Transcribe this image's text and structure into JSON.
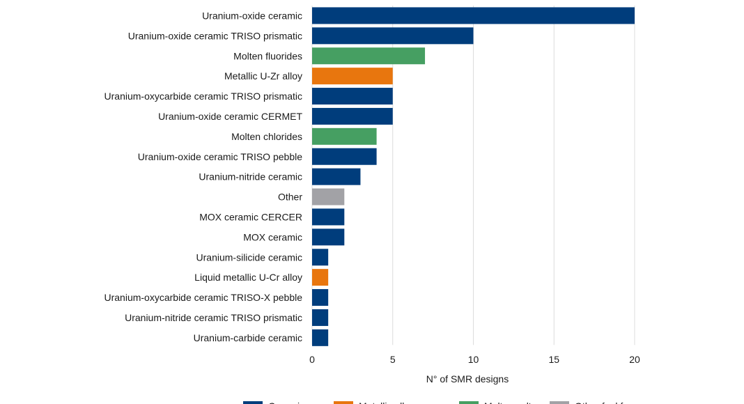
{
  "chart_data": {
    "type": "bar",
    "orientation": "horizontal",
    "title": "",
    "xlabel": "N° of SMR designs",
    "ylabel": "",
    "xlim": [
      0,
      20
    ],
    "xticks": [
      0,
      5,
      10,
      15,
      20
    ],
    "grid": true,
    "legend_position": "bottom",
    "colors": {
      "Ceramics": "#003d7c",
      "Metallic alloys": "#e8760e",
      "Molten salts": "#469f62",
      "Other fuel form": "#a2a2a6"
    },
    "legend": [
      "Ceramics",
      "Metallic alloys",
      "Molten salts",
      "Other fuel form"
    ],
    "categories": [
      "Uranium-oxide ceramic",
      "Uranium-oxide ceramic TRISO prismatic",
      "Molten fluorides",
      "Metallic U-Zr alloy",
      "Uranium-oxycarbide ceramic TRISO prismatic",
      "Uranium-oxide ceramic CERMET",
      "Molten chlorides",
      "Uranium-oxide ceramic TRISO pebble",
      "Uranium-nitride ceramic",
      "Other",
      "MOX ceramic CERCER",
      "MOX ceramic",
      "Uranium-silicide ceramic",
      "Liquid metallic U-Cr alloy",
      "Uranium-oxycarbide ceramic TRISO-X pebble",
      "Uranium-nitride ceramic TRISO prismatic",
      "Uranium-carbide ceramic"
    ],
    "values": [
      20,
      10,
      7,
      5,
      5,
      5,
      4,
      4,
      3,
      2,
      2,
      2,
      1,
      1,
      1,
      1,
      1
    ],
    "groups": [
      "Ceramics",
      "Ceramics",
      "Molten salts",
      "Metallic alloys",
      "Ceramics",
      "Ceramics",
      "Molten salts",
      "Ceramics",
      "Ceramics",
      "Other fuel form",
      "Ceramics",
      "Ceramics",
      "Ceramics",
      "Metallic alloys",
      "Ceramics",
      "Ceramics",
      "Ceramics"
    ]
  }
}
